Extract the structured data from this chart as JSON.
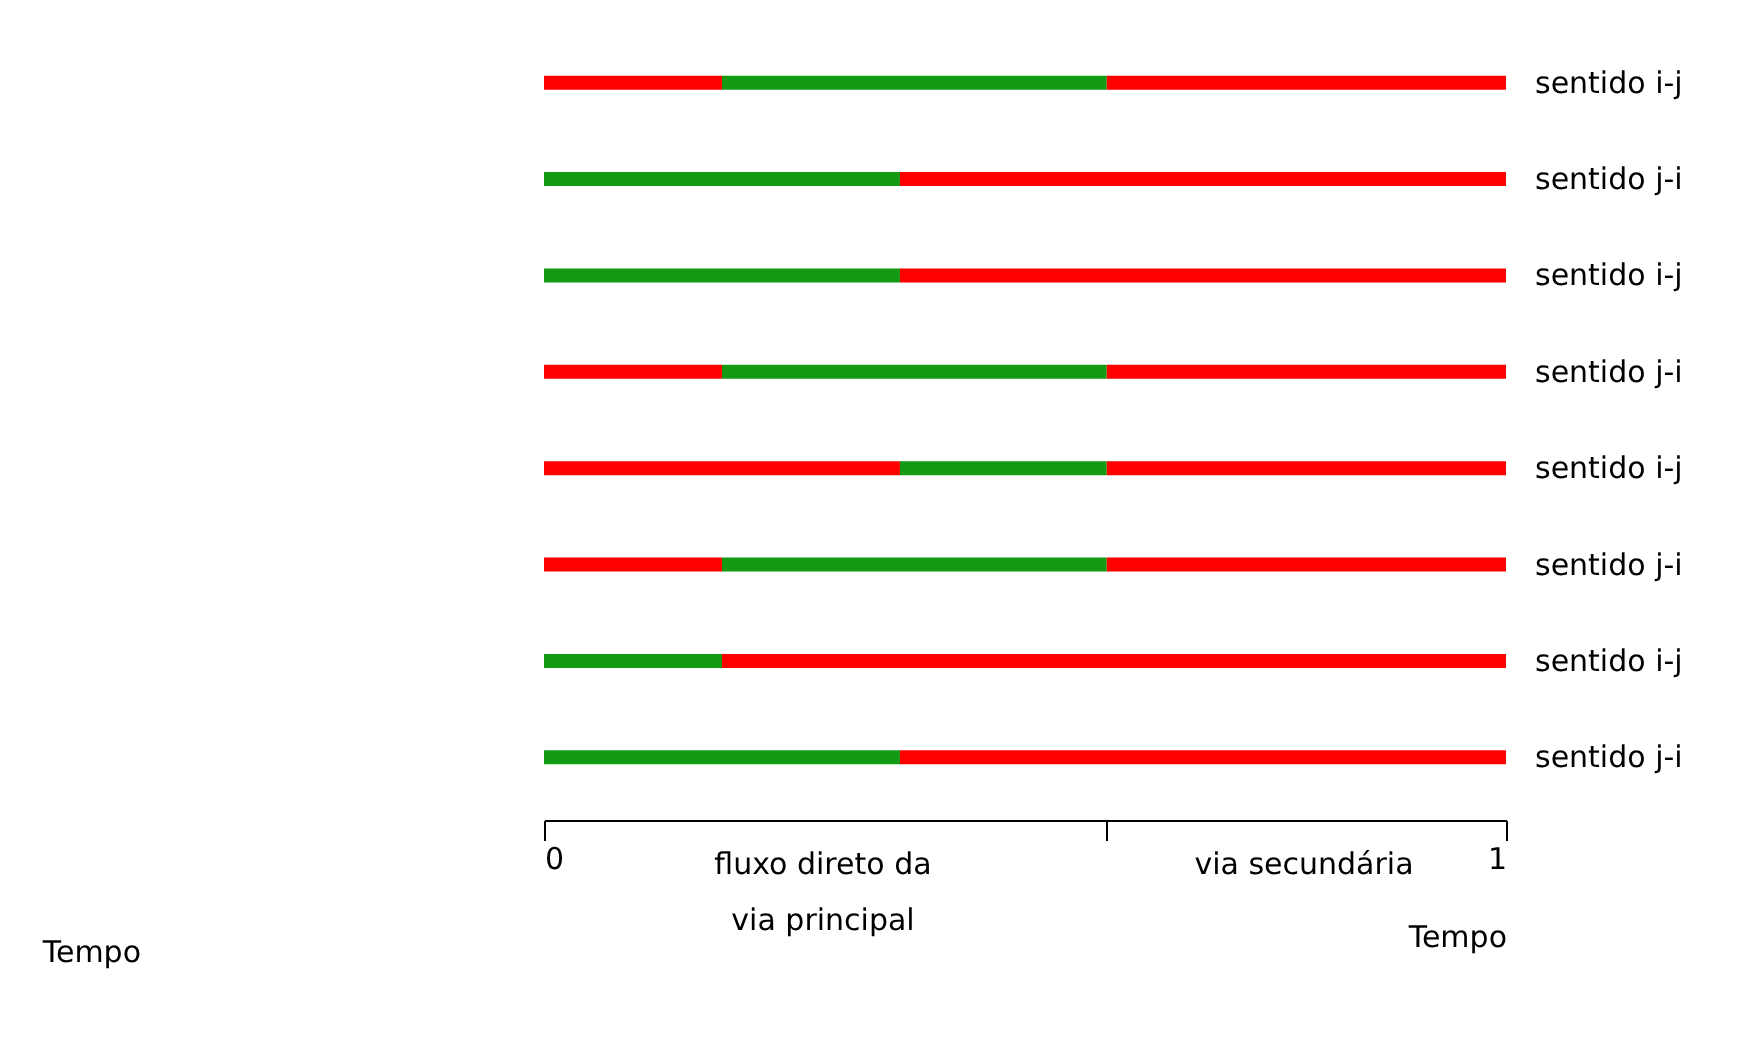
{
  "chart_data": {
    "type": "bar",
    "orientation": "horizontal",
    "stacked": true,
    "xlabel": "Tempo",
    "categories": [
      "sentido i-j",
      "sentido j-i",
      "sentido i-j",
      "sentido j-i",
      "sentido i-j",
      "sentido j-i",
      "sentido i-j",
      "sentido j-i"
    ],
    "series": [
      {
        "values": [
          0.185,
          0.37,
          0.37,
          0.185,
          0.37,
          0.185,
          0.185,
          0.37
        ],
        "colors": [
          "#ff0000",
          "#129a12",
          "#129a12",
          "#ff0000",
          "#ff0000",
          "#ff0000",
          "#129a12",
          "#129a12"
        ]
      },
      {
        "values": [
          0.4,
          0.63,
          0.63,
          0.4,
          0.215,
          0.4,
          0.815,
          0.63
        ],
        "colors": [
          "#129a12",
          "#ff0000",
          "#ff0000",
          "#129a12",
          "#129a12",
          "#129a12",
          "#ff0000",
          "#ff0000"
        ]
      },
      {
        "values": [
          0.415,
          null,
          null,
          0.415,
          0.415,
          0.415,
          null,
          null
        ],
        "colors": [
          "#ff0000",
          null,
          null,
          "#ff0000",
          "#ff0000",
          "#ff0000",
          null,
          null
        ]
      }
    ],
    "xlim": [
      0,
      1
    ],
    "xticks": [
      0,
      {
        "value": 0.585,
        "label": null
      },
      1
    ],
    "grid": false,
    "annotations": [
      "fluxo direto da",
      "via principal",
      "via secundária",
      "Tempo"
    ]
  }
}
